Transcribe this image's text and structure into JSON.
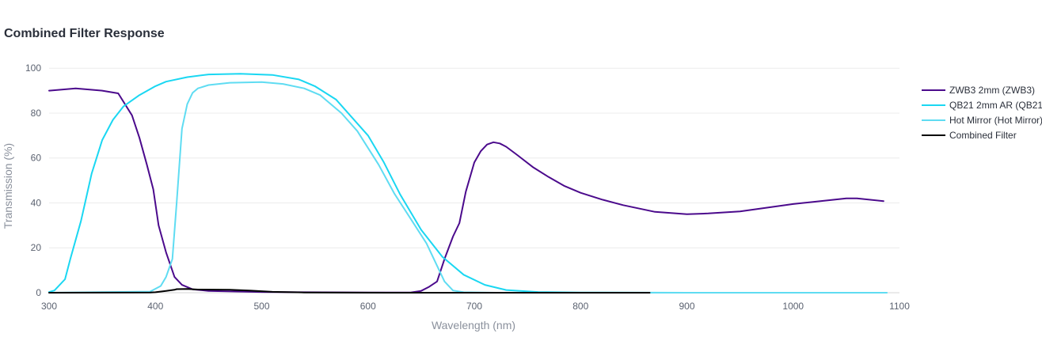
{
  "chart_data": {
    "type": "line",
    "title": "Combined Filter Response",
    "xlabel": "Wavelength (nm)",
    "ylabel": "Transmission (%)",
    "xlim": [
      300,
      1100
    ],
    "ylim": [
      0,
      105
    ],
    "x_ticks": [
      300,
      400,
      500,
      600,
      700,
      800,
      900,
      1000,
      1100
    ],
    "y_ticks": [
      0,
      20,
      40,
      60,
      80,
      100
    ],
    "grid": true,
    "legend_position": "right",
    "series": [
      {
        "name": "ZWB3 2mm (ZWB3)",
        "color": "#4b0a8c",
        "x": [
          300,
          325,
          350,
          365,
          378,
          385,
          392,
          398,
          403,
          410,
          418,
          425,
          435,
          450,
          500,
          600,
          640,
          650,
          657,
          665,
          672,
          680,
          686,
          692,
          700,
          706,
          712,
          718,
          724,
          730,
          740,
          755,
          770,
          785,
          800,
          820,
          840,
          870,
          900,
          920,
          950,
          1000,
          1050,
          1060,
          1085
        ],
        "y": [
          90,
          91,
          90,
          88.8,
          79,
          69,
          57,
          46,
          30,
          18,
          7,
          3.5,
          1.5,
          0.8,
          0.3,
          0.1,
          0.1,
          0.8,
          2.5,
          5,
          15,
          25,
          31,
          45,
          58,
          63,
          66,
          67,
          66.5,
          65,
          61.5,
          56,
          51.5,
          47.5,
          44.5,
          41.5,
          39,
          36,
          35,
          35.3,
          36.2,
          39.5,
          42,
          42,
          40.8
        ]
      },
      {
        "name": "QB21 2mm AR (QB21",
        "color": "#1ad7f2",
        "x": [
          300,
          305,
          315,
          320,
          330,
          340,
          350,
          360,
          370,
          385,
          400,
          410,
          430,
          450,
          480,
          510,
          535,
          550,
          570,
          600,
          615,
          630,
          650,
          670,
          690,
          710,
          730,
          760,
          800,
          900,
          1000,
          1088
        ],
        "y": [
          0.3,
          1,
          6,
          15,
          32,
          53,
          68,
          77,
          83,
          88,
          92,
          94,
          96,
          97.2,
          97.5,
          97,
          95,
          92,
          86,
          70,
          58,
          44,
          28,
          16,
          8,
          3.5,
          1.2,
          0.3,
          0.1,
          0,
          0,
          0
        ]
      },
      {
        "name": "Hot Mirror (Hot Mirror)",
        "color": "#5fdcf2",
        "x": [
          300,
          395,
          405,
          410,
          416,
          420,
          425,
          430,
          435,
          440,
          450,
          470,
          500,
          520,
          540,
          555,
          575,
          590,
          610,
          625,
          640,
          655,
          665,
          672,
          680,
          690,
          720,
          800,
          1000,
          1088
        ],
        "y": [
          0,
          0.5,
          3,
          7,
          15,
          40,
          73,
          84,
          89,
          91,
          92.5,
          93.5,
          93.8,
          93,
          91,
          88,
          80,
          72,
          57,
          44,
          33,
          22,
          12,
          5,
          1,
          0.2,
          0,
          0,
          0,
          0
        ]
      },
      {
        "name": "Combined Filter",
        "color": "#000000",
        "x": [
          300,
          395,
          400,
          410,
          418,
          420,
          430,
          440,
          470,
          490,
          510,
          540,
          580,
          620,
          700,
          800,
          865
        ],
        "y": [
          0,
          0.1,
          0.2,
          0.8,
          1.3,
          1.6,
          1.7,
          1.4,
          1.3,
          0.9,
          0.4,
          0.1,
          0.05,
          0,
          0,
          0,
          0
        ]
      }
    ]
  }
}
